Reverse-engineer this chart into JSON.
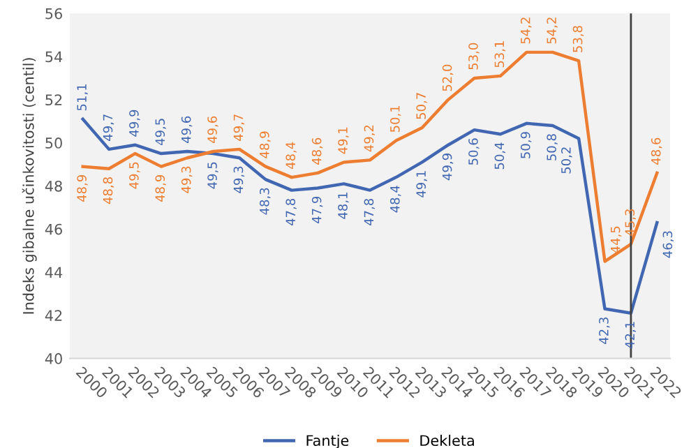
{
  "chart_data": {
    "type": "line",
    "ylabel": "Indeks gibalne učinkovitosti (centil)",
    "categories": [
      "2000",
      "2001",
      "2002",
      "2003",
      "2004",
      "2005",
      "2006",
      "2007",
      "2008",
      "2009",
      "2010",
      "2011",
      "2012",
      "2013",
      "2014",
      "2015",
      "2016",
      "2017",
      "2018",
      "2019",
      "2020",
      "2021",
      "2022"
    ],
    "series": [
      {
        "name": "Fantje",
        "color": "#4267b2",
        "values": [
          51.1,
          49.7,
          49.9,
          49.5,
          49.6,
          49.5,
          49.3,
          48.3,
          47.8,
          47.9,
          48.1,
          47.8,
          48.4,
          49.1,
          49.9,
          50.6,
          50.4,
          50.9,
          50.8,
          50.2,
          42.3,
          42.1,
          46.3
        ],
        "value_labels": [
          "51,1",
          "49,7",
          "49,9",
          "49,5",
          "49,6",
          "49,5",
          "49,3",
          "48,3",
          "47,8",
          "47,9",
          "48,1",
          "47,8",
          "48,4",
          "49,1",
          "49,9",
          "50,6",
          "50,4",
          "50,9",
          "50,8",
          "50,2",
          "42,3",
          "42,1",
          "46,3"
        ]
      },
      {
        "name": "Dekleta",
        "color": "#ed7d31",
        "values": [
          48.9,
          48.8,
          49.5,
          48.9,
          49.3,
          49.6,
          49.7,
          48.9,
          48.4,
          48.6,
          49.1,
          49.2,
          50.1,
          50.7,
          52.0,
          53.0,
          53.1,
          54.2,
          54.2,
          53.8,
          44.5,
          45.3,
          48.6
        ],
        "value_labels": [
          "48,9",
          "48,8",
          "49,5",
          "48,9",
          "49,3",
          "49,6",
          "49,7",
          "48,9",
          "48,4",
          "48,6",
          "49,1",
          "49,2",
          "50,1",
          "50,7",
          "52,0",
          "53,0",
          "53,1",
          "54,2",
          "54,2",
          "53,8",
          "44,5",
          "45,3",
          "48,6"
        ]
      }
    ],
    "ylim": [
      40,
      56
    ],
    "yticks": [
      40,
      42,
      44,
      46,
      48,
      50,
      52,
      54,
      56
    ],
    "ref_lines": [
      {
        "axis": "x",
        "value": "2021",
        "color": "#404040"
      }
    ],
    "grid": false,
    "legend": "bottom",
    "marker": "none",
    "line_style": "solid"
  }
}
